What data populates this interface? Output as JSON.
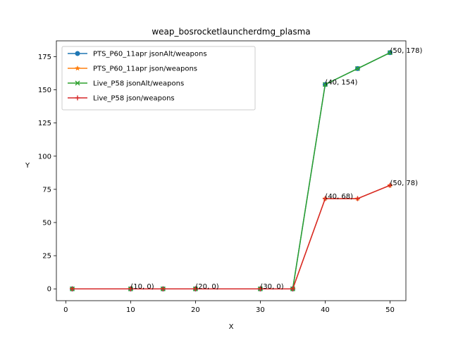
{
  "chart_data": {
    "type": "line",
    "title": "weap_bosrocketlauncherdmg_plasma",
    "xlabel": "X",
    "ylabel": "Y",
    "xlim": [
      -1.45,
      52.45
    ],
    "ylim": [
      -8.9,
      186.9
    ],
    "xticks": [
      0,
      10,
      20,
      30,
      40,
      50
    ],
    "yticks": [
      0,
      25,
      50,
      75,
      100,
      125,
      150,
      175
    ],
    "grid": false,
    "legend_position": "top-left",
    "series": [
      {
        "name": "PTS_P60_11apr jsonAlt/weapons",
        "color": "#1f77b4",
        "marker": "circle",
        "x": [
          1,
          10,
          15,
          20,
          30,
          35,
          40,
          45,
          50
        ],
        "y": [
          0,
          0,
          0,
          0,
          0,
          0,
          154,
          166,
          178
        ]
      },
      {
        "name": "PTS_P60_11apr json/weapons",
        "color": "#ff7f0e",
        "marker": "star",
        "x": [
          1,
          10,
          15,
          20,
          30,
          35,
          40,
          45,
          50
        ],
        "y": [
          0,
          0,
          0,
          0,
          0,
          0,
          68,
          68,
          78
        ]
      },
      {
        "name": "Live_P58 jsonAlt/weapons",
        "color": "#2ca02c",
        "marker": "x",
        "x": [
          1,
          10,
          15,
          20,
          30,
          35,
          40,
          45,
          50
        ],
        "y": [
          0,
          0,
          0,
          0,
          0,
          0,
          154,
          166,
          178
        ]
      },
      {
        "name": "Live_P58 json/weapons",
        "color": "#d62728",
        "marker": "plus",
        "x": [
          1,
          10,
          15,
          20,
          30,
          35,
          40,
          45,
          50
        ],
        "y": [
          0,
          0,
          0,
          0,
          0,
          0,
          68,
          68,
          78
        ]
      }
    ],
    "annotations": [
      {
        "text": "(10, 0)",
        "x": 10,
        "y": 0
      },
      {
        "text": "(20, 0)",
        "x": 20,
        "y": 0
      },
      {
        "text": "(30, 0)",
        "x": 30,
        "y": 0
      },
      {
        "text": "(40, 154)",
        "x": 40,
        "y": 154
      },
      {
        "text": "(50, 178)",
        "x": 50,
        "y": 178
      },
      {
        "text": "(40, 68)",
        "x": 40,
        "y": 68
      },
      {
        "text": "(50, 78)",
        "x": 50,
        "y": 78
      }
    ]
  }
}
